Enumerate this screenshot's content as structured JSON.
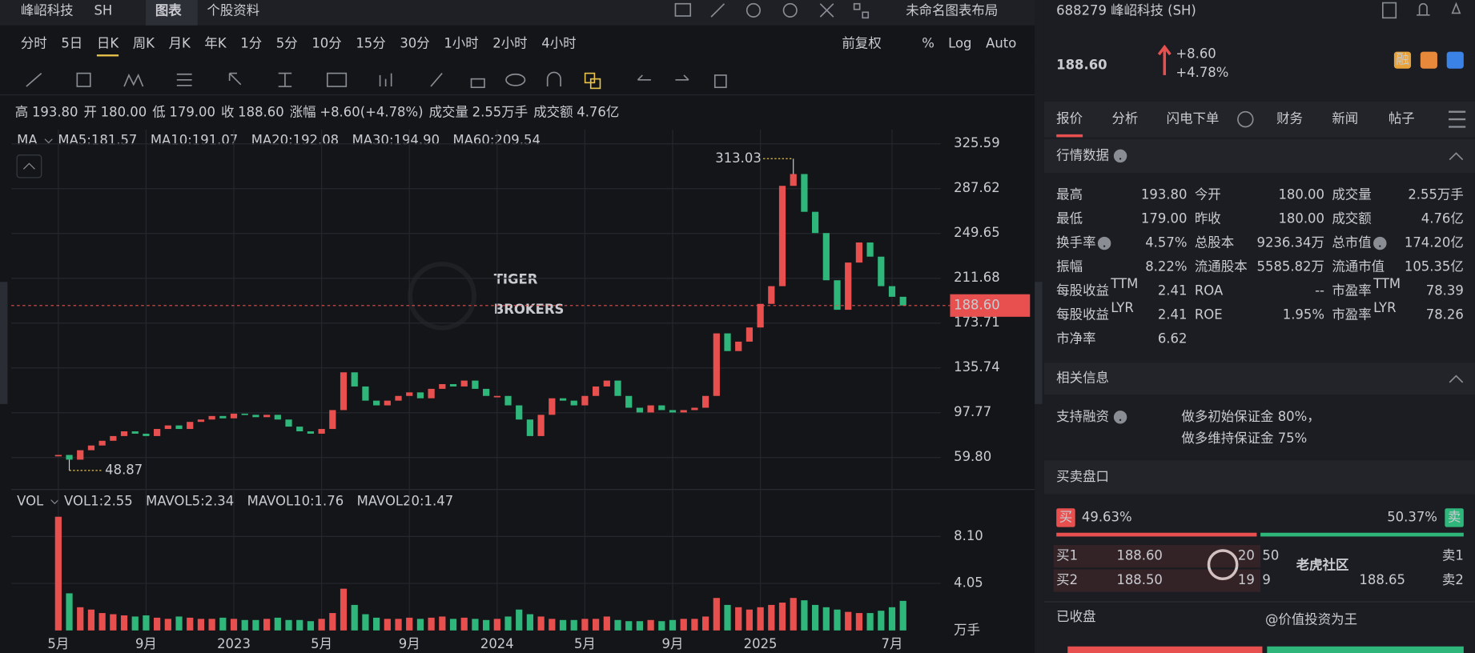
{
  "header": {
    "stock": "峰岹科技",
    "market": "SH",
    "tabs": [
      "图表",
      "个股资料"
    ],
    "layout_name": "未命名图表布局"
  },
  "periods": [
    "分时",
    "5日",
    "日K",
    "周K",
    "月K",
    "年K",
    "1分",
    "5分",
    "10分",
    "15分",
    "30分",
    "1小时",
    "2小时",
    "4小时"
  ],
  "active_period": 2,
  "chart_options": [
    "前复权",
    "%",
    "Log",
    "Auto"
  ],
  "ohlc_bar": [
    {
      "label": "高",
      "value": "193.80",
      "color": "#e8504f"
    },
    {
      "label": "开",
      "value": "180.00",
      "color": "#d8d9dc"
    },
    {
      "label": "低",
      "value": "179.00",
      "color": "#2fb67a"
    },
    {
      "label": "收",
      "value": "188.60",
      "color": "#e8504f"
    },
    {
      "label": "涨幅",
      "value": "+8.60(+4.78%)",
      "color": "#e8504f"
    },
    {
      "label": "成交量",
      "value": "2.55万手",
      "color": "#d8d9dc"
    },
    {
      "label": "成交额",
      "value": "4.76亿",
      "color": "#d8d9dc"
    }
  ],
  "ma_legend": {
    "title": "MA",
    "items": [
      {
        "text": "MA5:181.57",
        "color": "#7fb4e6"
      },
      {
        "text": "MA10:191.07",
        "color": "#e65a8c"
      },
      {
        "text": "MA20:192.08",
        "color": "#e8c24a"
      },
      {
        "text": "MA30:194.90",
        "color": "#3b6fd6"
      },
      {
        "text": "MA60:209.54",
        "color": "#e8665a"
      }
    ]
  },
  "vol_legend": {
    "title": "VOL",
    "items": [
      {
        "text": "VOL1:2.55",
        "color": "#e8665a"
      },
      {
        "text": "MAVOL5:2.34",
        "color": "#7fb4e6"
      },
      {
        "text": "MAVOL10:1.76",
        "color": "#e65a8c"
      },
      {
        "text": "MAVOL20:1.47",
        "color": "#e8c24a"
      }
    ]
  },
  "watermark": [
    "TIGER",
    "BROKERS"
  ],
  "chart_data": [
    {
      "type": "candlestick",
      "categories": [
        "5月",
        null,
        null,
        null,
        null,
        null,
        null,
        null,
        "9月",
        null,
        null,
        null,
        null,
        null,
        null,
        null,
        "2023",
        null,
        null,
        null,
        null,
        null,
        null,
        null,
        "5月",
        null,
        null,
        null,
        null,
        null,
        null,
        null,
        "9月",
        null,
        null,
        null,
        null,
        null,
        null,
        null,
        "2024",
        null,
        null,
        null,
        null,
        null,
        null,
        null,
        "5月",
        null,
        null,
        null,
        null,
        null,
        null,
        null,
        "9月",
        null,
        null,
        null,
        null,
        null,
        null,
        null,
        "2025",
        null,
        null,
        null,
        null,
        null,
        null,
        null,
        null,
        null,
        null,
        null,
        "7月",
        null
      ],
      "values": [
        62,
        58,
        66,
        70,
        74,
        78,
        82,
        80,
        78,
        84,
        87,
        84,
        90,
        92,
        95,
        93,
        97,
        96,
        94,
        96,
        92,
        86,
        82,
        80,
        84,
        100,
        132,
        120,
        108,
        104,
        108,
        112,
        115,
        110,
        118,
        122,
        120,
        125,
        118,
        112,
        112,
        104,
        92,
        78,
        96,
        110,
        108,
        104,
        112,
        120,
        125,
        112,
        102,
        98,
        104,
        100,
        98,
        100,
        102,
        112,
        165,
        150,
        158,
        170,
        190,
        205,
        290,
        300,
        268,
        250,
        210,
        185,
        225,
        242,
        230,
        205,
        196,
        188.6
      ],
      "ylim": [
        33.5,
        337.6
      ],
      "yticks": [
        325.59,
        287.62,
        249.65,
        211.68,
        173.71,
        135.74,
        97.77,
        {
          "value": 59.8,
          "label": "59.80"
        }
      ],
      "up_color": "#e8504f",
      "down_color": "#2fb67a",
      "grid": true,
      "high": 313.03,
      "low": 48.87,
      "last": {
        "value": 188.6,
        "label": "188.60"
      }
    },
    {
      "type": "bar",
      "values": [
        9.8,
        3.2,
        2.0,
        1.8,
        1.5,
        1.4,
        1.3,
        1.2,
        1.3,
        1.1,
        1.0,
        1.2,
        1.1,
        1.0,
        1.0,
        1.1,
        1.0,
        0.9,
        0.9,
        1.0,
        1.1,
        0.9,
        0.9,
        0.8,
        1.0,
        1.5,
        3.6,
        2.2,
        1.4,
        1.1,
        1.0,
        1.0,
        1.1,
        1.0,
        1.1,
        1.2,
        1.0,
        1.1,
        1.0,
        0.9,
        1.0,
        1.2,
        1.8,
        1.4,
        1.2,
        1.0,
        0.9,
        0.9,
        1.0,
        1.0,
        1.2,
        0.9,
        0.8,
        0.8,
        0.9,
        0.8,
        0.9,
        1.0,
        1.0,
        1.2,
        2.8,
        2.2,
        2.0,
        1.8,
        2.0,
        2.2,
        2.4,
        2.8,
        2.6,
        2.2,
        2.0,
        1.8,
        1.6,
        1.5,
        1.5,
        1.7,
        2.0,
        2.55
      ],
      "ylim": [
        0,
        10
      ],
      "yticks": [
        {
          "value": 8.1,
          "label": "8.10"
        },
        {
          "value": 4.05,
          "label": "4.05"
        }
      ],
      "unit": "万手"
    }
  ],
  "quote": {
    "title": "688279 峰岹科技 (SH)",
    "price": "188.60",
    "change": "+8.60",
    "change_pct": "+4.78%",
    "badges": [
      "融"
    ],
    "tabs": [
      "报价",
      "分析",
      "闪电下单",
      "财务",
      "新闻",
      "帖子"
    ],
    "market_data": {
      "title": "行情数据",
      "rows": [
        [
          {
            "label": "最高",
            "value": "193.80",
            "color": "#e8504f"
          },
          {
            "label": "今开",
            "value": "180.00"
          },
          {
            "label": "成交量",
            "value": "2.55万手"
          }
        ],
        [
          {
            "label": "最低",
            "value": "179.00",
            "color": "#2fb67a"
          },
          {
            "label": "昨收",
            "value": "180.00"
          },
          {
            "label": "成交额",
            "value": "4.76亿"
          }
        ],
        [
          {
            "label": "换手率",
            "value": "4.57%",
            "help": true
          },
          {
            "label": "总股本",
            "value": "9236.34万"
          },
          {
            "label": "总市值",
            "value": "174.20亿",
            "help": true
          }
        ],
        [
          {
            "label": "振幅",
            "value": "8.22%"
          },
          {
            "label": "流通股本",
            "value": "5585.82万"
          },
          {
            "label": "流通市值",
            "value": "105.35亿"
          }
        ],
        [
          {
            "label": "每股收益",
            "sup": "TTM",
            "value": "2.41"
          },
          {
            "label": "ROA",
            "value": "--"
          },
          {
            "label": "市盈率",
            "sup": "TTM",
            "value": "78.39"
          }
        ],
        [
          {
            "label": "每股收益",
            "sup": "LYR",
            "value": "2.41"
          },
          {
            "label": "ROE",
            "value": "1.95%"
          },
          {
            "label": "市盈率",
            "sup": "LYR",
            "value": "78.26"
          }
        ],
        [
          {
            "label": "市净率",
            "value": "6.62"
          }
        ]
      ]
    },
    "related": {
      "title": "相关信息",
      "label": "支持融资",
      "lines": [
        "做多初始保证金 80%，",
        "做多维持保证金 75%"
      ]
    },
    "order_book": {
      "title": "买卖盘口",
      "buy_tag": "买",
      "buy_pct": "49.63%",
      "sell_pct": "50.37%",
      "sell_tag": "卖",
      "rows": [
        {
          "label": "买1",
          "price": "188.60",
          "qty": "20",
          "qty2": "50",
          "ask_label": "卖1"
        },
        {
          "label": "买2",
          "price": "188.50",
          "qty": "19",
          "qty2": "9",
          "ask_price": "188.65",
          "ask_label": "卖2"
        }
      ]
    },
    "status": "已收盘"
  },
  "overlay_watermark": [
    "老虎社区",
    "@价值投资为王"
  ]
}
